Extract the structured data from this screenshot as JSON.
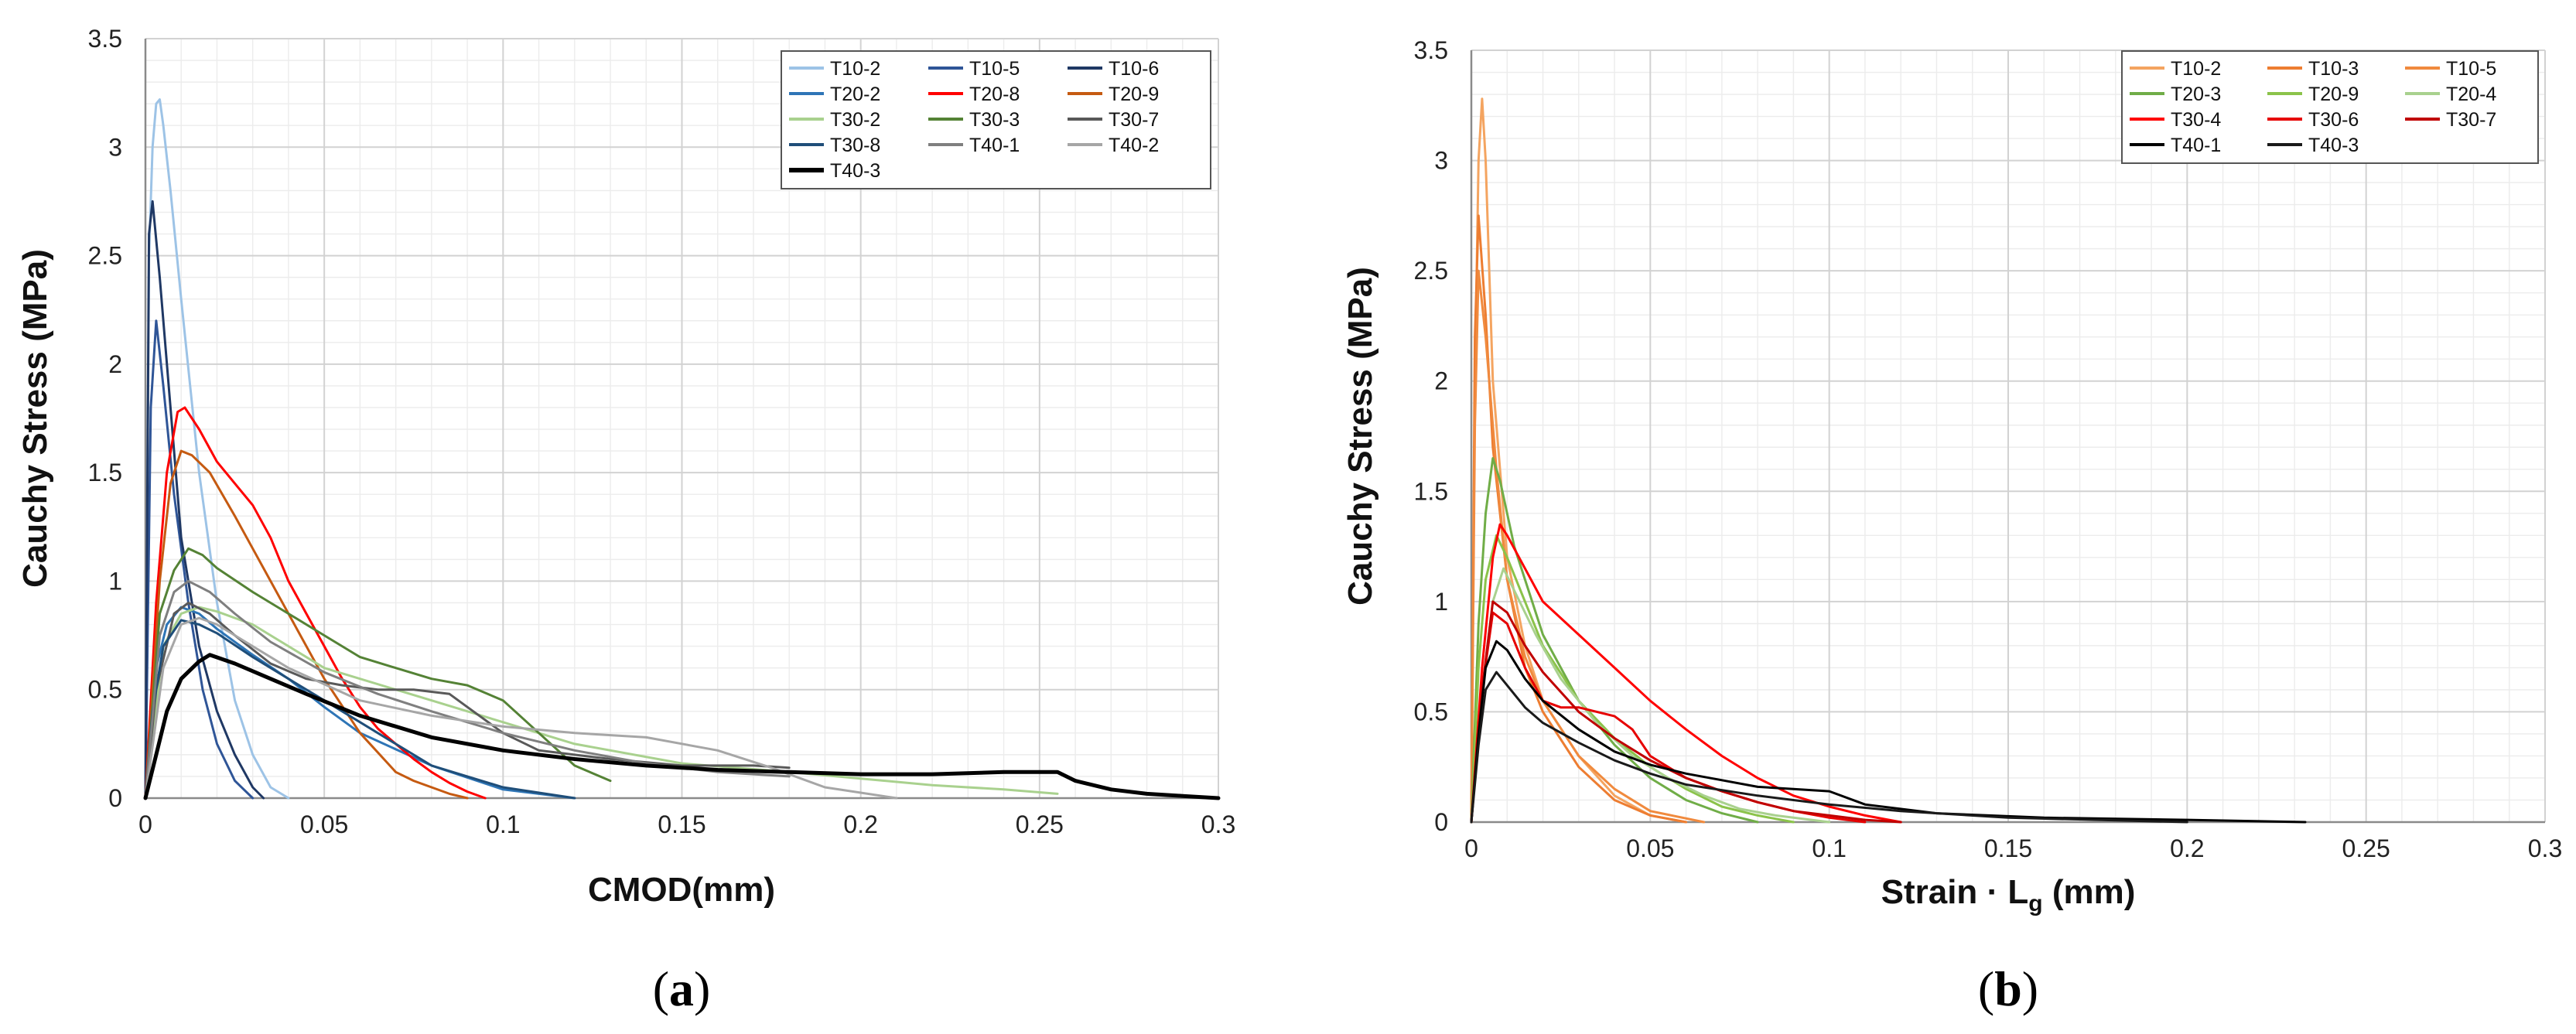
{
  "chart_data": [
    {
      "type": "line",
      "panel": "(a)",
      "panel_letter": "a",
      "xlabel": "CMOD(mm)",
      "ylabel": "Cauchy Stress (MPa)",
      "xlim": [
        0,
        0.3
      ],
      "ylim": [
        0,
        3.5
      ],
      "x_ticks": [
        0,
        0.05,
        0.1,
        0.15,
        0.2,
        0.25,
        0.3
      ],
      "x_tick_labels": [
        "0",
        "0.05",
        "0.1",
        "0.15",
        "0.2",
        "0.25",
        "0.3"
      ],
      "y_ticks": [
        0,
        0.5,
        1,
        1.5,
        2,
        2.5,
        3,
        3.5
      ],
      "y_tick_labels": [
        "0",
        "0.5",
        "1",
        "1.5",
        "2",
        "2.5",
        "3",
        "3.5"
      ],
      "grid": true,
      "legend_position": "top-right",
      "legend_columns": 3,
      "series": [
        {
          "name": "T10-2",
          "color": "#9dc3e6",
          "width": 3,
          "x": [
            0,
            0.001,
            0.002,
            0.003,
            0.004,
            0.005,
            0.007,
            0.01,
            0.015,
            0.02,
            0.025,
            0.03,
            0.035,
            0.04
          ],
          "y": [
            0,
            2.5,
            3.0,
            3.2,
            3.22,
            3.1,
            2.8,
            2.3,
            1.5,
            0.9,
            0.45,
            0.2,
            0.05,
            0
          ]
        },
        {
          "name": "T10-5",
          "color": "#2f5597",
          "width": 3,
          "x": [
            0,
            0.0015,
            0.003,
            0.005,
            0.008,
            0.012,
            0.016,
            0.02,
            0.025,
            0.03
          ],
          "y": [
            0,
            1.8,
            2.2,
            1.9,
            1.4,
            0.9,
            0.5,
            0.25,
            0.08,
            0
          ]
        },
        {
          "name": "T10-6",
          "color": "#1f3864",
          "width": 3,
          "x": [
            0,
            0.001,
            0.002,
            0.004,
            0.007,
            0.01,
            0.015,
            0.02,
            0.025,
            0.03,
            0.033
          ],
          "y": [
            0,
            2.6,
            2.75,
            2.4,
            1.8,
            1.2,
            0.7,
            0.4,
            0.2,
            0.05,
            0
          ]
        },
        {
          "name": "T20-2",
          "color": "#2e75b6",
          "width": 3,
          "x": [
            0,
            0.003,
            0.006,
            0.01,
            0.015,
            0.02,
            0.03,
            0.04,
            0.05,
            0.06,
            0.08,
            0.1,
            0.12
          ],
          "y": [
            0,
            0.6,
            0.8,
            0.88,
            0.85,
            0.78,
            0.66,
            0.55,
            0.42,
            0.3,
            0.15,
            0.04,
            0
          ]
        },
        {
          "name": "T20-8",
          "color": "#ff0000",
          "width": 3,
          "x": [
            0,
            0.003,
            0.006,
            0.009,
            0.011,
            0.015,
            0.02,
            0.025,
            0.03,
            0.035,
            0.04,
            0.045,
            0.05,
            0.055,
            0.06,
            0.065,
            0.07,
            0.075,
            0.08,
            0.085,
            0.09,
            0.095
          ],
          "y": [
            0,
            0.9,
            1.5,
            1.78,
            1.8,
            1.7,
            1.55,
            1.45,
            1.35,
            1.2,
            1.0,
            0.85,
            0.7,
            0.55,
            0.42,
            0.32,
            0.25,
            0.18,
            0.12,
            0.07,
            0.03,
            0
          ]
        },
        {
          "name": "T20-9",
          "color": "#c55a11",
          "width": 3,
          "x": [
            0,
            0.004,
            0.007,
            0.01,
            0.013,
            0.018,
            0.025,
            0.03,
            0.035,
            0.04,
            0.05,
            0.06,
            0.07,
            0.075,
            0.08,
            0.085,
            0.09
          ],
          "y": [
            0,
            1.0,
            1.45,
            1.6,
            1.58,
            1.5,
            1.3,
            1.15,
            1.0,
            0.85,
            0.55,
            0.3,
            0.12,
            0.08,
            0.05,
            0.02,
            0
          ]
        },
        {
          "name": "T30-2",
          "color": "#a9d18e",
          "width": 3,
          "x": [
            0,
            0.005,
            0.01,
            0.015,
            0.02,
            0.03,
            0.05,
            0.08,
            0.1,
            0.12,
            0.15,
            0.18,
            0.2,
            0.22,
            0.24,
            0.255
          ],
          "y": [
            0,
            0.7,
            0.85,
            0.88,
            0.86,
            0.8,
            0.6,
            0.45,
            0.35,
            0.25,
            0.16,
            0.12,
            0.09,
            0.06,
            0.04,
            0.02
          ]
        },
        {
          "name": "T30-3",
          "color": "#548235",
          "width": 3,
          "x": [
            0,
            0.004,
            0.008,
            0.012,
            0.016,
            0.02,
            0.03,
            0.04,
            0.05,
            0.06,
            0.07,
            0.08,
            0.09,
            0.1,
            0.11,
            0.12,
            0.13
          ],
          "y": [
            0,
            0.85,
            1.05,
            1.15,
            1.12,
            1.06,
            0.95,
            0.85,
            0.75,
            0.65,
            0.6,
            0.55,
            0.52,
            0.45,
            0.3,
            0.15,
            0.08
          ]
        },
        {
          "name": "T30-7",
          "color": "#595959",
          "width": 3,
          "x": [
            0,
            0.003,
            0.008,
            0.012,
            0.018,
            0.025,
            0.035,
            0.045,
            0.055,
            0.065,
            0.075,
            0.085,
            0.09,
            0.1,
            0.11,
            0.13,
            0.15,
            0.17,
            0.18
          ],
          "y": [
            0,
            0.5,
            0.85,
            0.9,
            0.85,
            0.75,
            0.62,
            0.55,
            0.52,
            0.5,
            0.5,
            0.48,
            0.42,
            0.3,
            0.22,
            0.18,
            0.15,
            0.15,
            0.14
          ]
        },
        {
          "name": "T30-8",
          "color": "#1f4e79",
          "width": 3,
          "x": [
            0,
            0.002,
            0.005,
            0.01,
            0.015,
            0.02,
            0.03,
            0.04,
            0.05,
            0.06,
            0.07,
            0.08,
            0.1,
            0.12
          ],
          "y": [
            0,
            0.4,
            0.7,
            0.82,
            0.8,
            0.76,
            0.65,
            0.55,
            0.45,
            0.35,
            0.25,
            0.15,
            0.05,
            0
          ]
        },
        {
          "name": "T40-1",
          "color": "#7f7f7f",
          "width": 3,
          "x": [
            0,
            0.004,
            0.008,
            0.012,
            0.018,
            0.025,
            0.035,
            0.05,
            0.065,
            0.08,
            0.1,
            0.12,
            0.14,
            0.16,
            0.18
          ],
          "y": [
            0,
            0.75,
            0.95,
            1.0,
            0.95,
            0.85,
            0.72,
            0.58,
            0.48,
            0.4,
            0.3,
            0.22,
            0.16,
            0.12,
            0.1
          ]
        },
        {
          "name": "T40-2",
          "color": "#a6a6a6",
          "width": 3,
          "x": [
            0,
            0.005,
            0.01,
            0.015,
            0.02,
            0.03,
            0.04,
            0.06,
            0.08,
            0.1,
            0.12,
            0.14,
            0.16,
            0.175,
            0.19,
            0.21
          ],
          "y": [
            0,
            0.6,
            0.8,
            0.83,
            0.8,
            0.7,
            0.6,
            0.45,
            0.38,
            0.33,
            0.3,
            0.28,
            0.22,
            0.14,
            0.05,
            0
          ]
        },
        {
          "name": "T40-3",
          "color": "#000000",
          "width": 5,
          "x": [
            0,
            0.003,
            0.006,
            0.01,
            0.015,
            0.018,
            0.025,
            0.035,
            0.045,
            0.06,
            0.08,
            0.1,
            0.12,
            0.14,
            0.16,
            0.18,
            0.2,
            0.22,
            0.24,
            0.255,
            0.26,
            0.27,
            0.28,
            0.29,
            0.3
          ],
          "y": [
            0,
            0.2,
            0.4,
            0.55,
            0.63,
            0.66,
            0.62,
            0.55,
            0.48,
            0.38,
            0.28,
            0.22,
            0.18,
            0.15,
            0.13,
            0.12,
            0.11,
            0.11,
            0.12,
            0.12,
            0.08,
            0.04,
            0.02,
            0.01,
            0
          ]
        }
      ]
    },
    {
      "type": "line",
      "panel": "(b)",
      "panel_letter": "b",
      "xlabel_main": "Strain · L",
      "xlabel_sub": "g",
      "xlabel_unit": " (mm)",
      "ylabel": "Cauchy Stress (MPa)",
      "xlim": [
        0,
        0.3
      ],
      "ylim": [
        0,
        3.5
      ],
      "x_ticks": [
        0,
        0.05,
        0.1,
        0.15,
        0.2,
        0.25,
        0.3
      ],
      "x_tick_labels": [
        "0",
        "0.05",
        "0.1",
        "0.15",
        "0.2",
        "0.25",
        "0.3"
      ],
      "y_ticks": [
        0,
        0.5,
        1,
        1.5,
        2,
        2.5,
        3,
        3.5
      ],
      "y_tick_labels": [
        "0",
        "0.5",
        "1",
        "1.5",
        "2",
        "2.5",
        "3",
        "3.5"
      ],
      "grid": true,
      "legend_position": "top-right",
      "legend_columns": 3,
      "series": [
        {
          "name": "T10-2",
          "color": "#f4a460",
          "width": 3,
          "x": [
            0,
            0.001,
            0.002,
            0.003,
            0.004,
            0.006,
            0.01,
            0.015,
            0.02,
            0.03,
            0.04,
            0.05,
            0.06
          ],
          "y": [
            0,
            2.0,
            3.0,
            3.28,
            3.0,
            2.0,
            1.2,
            0.8,
            0.55,
            0.3,
            0.12,
            0.03,
            0
          ]
        },
        {
          "name": "T10-3",
          "color": "#ed7d31",
          "width": 3,
          "x": [
            0,
            0.001,
            0.002,
            0.004,
            0.006,
            0.01,
            0.015,
            0.02,
            0.03,
            0.04,
            0.05,
            0.06
          ],
          "y": [
            0,
            2.2,
            2.75,
            2.3,
            1.7,
            1.1,
            0.7,
            0.5,
            0.25,
            0.1,
            0.03,
            0
          ]
        },
        {
          "name": "T10-5",
          "color": "#f08a3e",
          "width": 3,
          "x": [
            0,
            0.001,
            0.002,
            0.004,
            0.007,
            0.01,
            0.015,
            0.02,
            0.03,
            0.04,
            0.05,
            0.065
          ],
          "y": [
            0,
            1.8,
            2.5,
            2.2,
            1.6,
            1.1,
            0.75,
            0.55,
            0.3,
            0.15,
            0.05,
            0
          ]
        },
        {
          "name": "T20-3",
          "color": "#70ad47",
          "width": 3,
          "x": [
            0,
            0.002,
            0.004,
            0.006,
            0.008,
            0.012,
            0.02,
            0.03,
            0.04,
            0.05,
            0.06,
            0.07,
            0.08
          ],
          "y": [
            0,
            0.9,
            1.4,
            1.65,
            1.55,
            1.25,
            0.85,
            0.55,
            0.35,
            0.2,
            0.1,
            0.04,
            0
          ]
        },
        {
          "name": "T20-9",
          "color": "#8bc34a",
          "width": 3,
          "x": [
            0,
            0.002,
            0.004,
            0.007,
            0.01,
            0.015,
            0.02,
            0.03,
            0.04,
            0.05,
            0.06,
            0.07,
            0.08,
            0.09
          ],
          "y": [
            0,
            0.7,
            1.1,
            1.3,
            1.2,
            1.0,
            0.8,
            0.55,
            0.38,
            0.25,
            0.15,
            0.07,
            0.03,
            0
          ]
        },
        {
          "name": "T20-4",
          "color": "#a9d18e",
          "width": 3,
          "x": [
            0,
            0.003,
            0.006,
            0.009,
            0.012,
            0.018,
            0.025,
            0.035,
            0.045,
            0.055,
            0.065,
            0.075,
            0.085,
            0.1
          ],
          "y": [
            0,
            0.6,
            1.0,
            1.15,
            1.05,
            0.85,
            0.65,
            0.45,
            0.3,
            0.2,
            0.12,
            0.06,
            0.03,
            0
          ]
        },
        {
          "name": "T30-4",
          "color": "#ff0000",
          "width": 3,
          "x": [
            0,
            0.003,
            0.006,
            0.008,
            0.01,
            0.015,
            0.02,
            0.03,
            0.04,
            0.05,
            0.06,
            0.07,
            0.08,
            0.09,
            0.1,
            0.11,
            0.12
          ],
          "y": [
            0,
            0.7,
            1.2,
            1.35,
            1.3,
            1.15,
            1.0,
            0.85,
            0.7,
            0.55,
            0.42,
            0.3,
            0.2,
            0.12,
            0.07,
            0.03,
            0
          ]
        },
        {
          "name": "T30-6",
          "color": "#e60000",
          "width": 3,
          "x": [
            0,
            0.003,
            0.006,
            0.01,
            0.015,
            0.02,
            0.025,
            0.03,
            0.04,
            0.045,
            0.05,
            0.06,
            0.07,
            0.08,
            0.09,
            0.1,
            0.11
          ],
          "y": [
            0,
            0.6,
            0.95,
            0.9,
            0.7,
            0.55,
            0.52,
            0.52,
            0.48,
            0.42,
            0.3,
            0.2,
            0.14,
            0.09,
            0.05,
            0.02,
            0
          ]
        },
        {
          "name": "T30-7",
          "color": "#c00000",
          "width": 3,
          "x": [
            0,
            0.003,
            0.006,
            0.01,
            0.015,
            0.02,
            0.03,
            0.04,
            0.05,
            0.06,
            0.07,
            0.08,
            0.09,
            0.1,
            0.11,
            0.12
          ],
          "y": [
            0,
            0.6,
            1.0,
            0.95,
            0.8,
            0.68,
            0.5,
            0.38,
            0.28,
            0.2,
            0.14,
            0.09,
            0.05,
            0.03,
            0.01,
            0
          ]
        },
        {
          "name": "T40-1",
          "color": "#000000",
          "width": 3,
          "x": [
            0,
            0.002,
            0.004,
            0.007,
            0.01,
            0.015,
            0.02,
            0.03,
            0.04,
            0.05,
            0.06,
            0.07,
            0.08,
            0.09,
            0.1,
            0.11,
            0.13,
            0.16,
            0.2,
            0.233
          ],
          "y": [
            0,
            0.4,
            0.7,
            0.82,
            0.78,
            0.65,
            0.55,
            0.42,
            0.32,
            0.26,
            0.22,
            0.19,
            0.16,
            0.15,
            0.14,
            0.08,
            0.04,
            0.02,
            0.01,
            0
          ]
        },
        {
          "name": "T40-3",
          "color": "#1a1a1a",
          "width": 3,
          "x": [
            0,
            0.002,
            0.004,
            0.007,
            0.01,
            0.015,
            0.02,
            0.03,
            0.04,
            0.05,
            0.06,
            0.08,
            0.1,
            0.12,
            0.15,
            0.2
          ],
          "y": [
            0,
            0.35,
            0.6,
            0.68,
            0.62,
            0.52,
            0.45,
            0.36,
            0.28,
            0.22,
            0.17,
            0.12,
            0.08,
            0.05,
            0.02,
            0
          ]
        }
      ]
    }
  ]
}
